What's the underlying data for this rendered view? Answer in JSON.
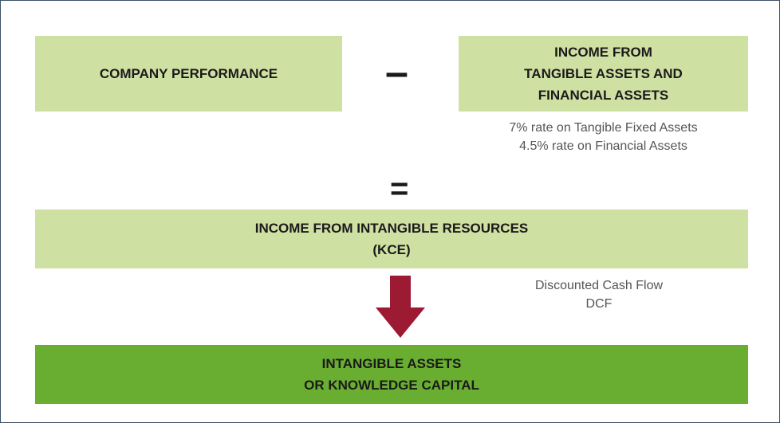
{
  "boxes": {
    "company_performance": "COMPANY PERFORMANCE",
    "minus": "–",
    "tangible_income": [
      "INCOME FROM",
      "TANGIBLE ASSETS AND",
      "FINANCIAL ASSETS"
    ],
    "rates": [
      "7% rate on Tangible Fixed Assets",
      "4.5% rate on Financial Assets"
    ],
    "equals": "=",
    "intangible_income": [
      "INCOME FROM INTANGIBLE RESOURCES",
      "(KCE)"
    ],
    "dcf": [
      "Discounted Cash Flow",
      "DCF"
    ],
    "knowledge_capital": [
      "INTANGIBLE ASSETS",
      "OR KNOWLEDGE CAPITAL"
    ]
  }
}
